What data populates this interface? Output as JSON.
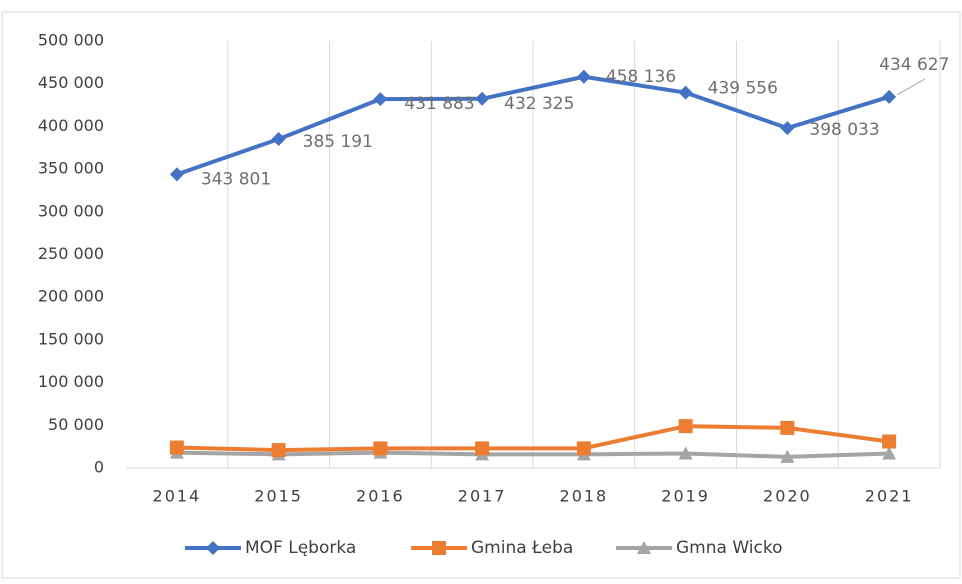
{
  "chart_data": {
    "type": "line",
    "categories": [
      "2014",
      "2015",
      "2016",
      "2017",
      "2018",
      "2019",
      "2020",
      "2021"
    ],
    "series": [
      {
        "name": "MOF Lęborka",
        "color": "#4472c4",
        "marker": "diamond",
        "values": [
          343801,
          385191,
          431883,
          432325,
          458136,
          439556,
          398033,
          434627
        ],
        "value_labels": [
          "343 801",
          "385 191",
          "431 883",
          "432 325",
          "458 136",
          "439 556",
          "398 033",
          "434 627"
        ]
      },
      {
        "name": "Gmina Łeba",
        "color": "#ed7d31",
        "marker": "square",
        "values": [
          24000,
          21000,
          23000,
          23000,
          23000,
          49000,
          47000,
          31000
        ]
      },
      {
        "name": "Gmna Wicko",
        "color": "#a5a5a5",
        "marker": "triangle",
        "values": [
          18000,
          16000,
          18000,
          16000,
          16000,
          17000,
          13000,
          17000
        ]
      }
    ],
    "ylim": [
      0,
      500000
    ],
    "yticks": [
      0,
      {
        "value": 50000,
        "label": "50 000"
      },
      {
        "value": 100000,
        "label": "100 000"
      },
      {
        "value": 150000,
        "label": "150 000"
      },
      {
        "value": 200000,
        "label": "200 000"
      },
      {
        "value": 250000,
        "label": "250 000"
      },
      {
        "value": 300000,
        "label": "300 000"
      },
      {
        "value": 350000,
        "label": "350 000"
      },
      {
        "value": 400000,
        "label": "400 000"
      },
      {
        "value": 450000,
        "label": "450 000"
      },
      {
        "value": 500000,
        "label": "500 000"
      }
    ],
    "grid": true,
    "legend": "bottom"
  }
}
